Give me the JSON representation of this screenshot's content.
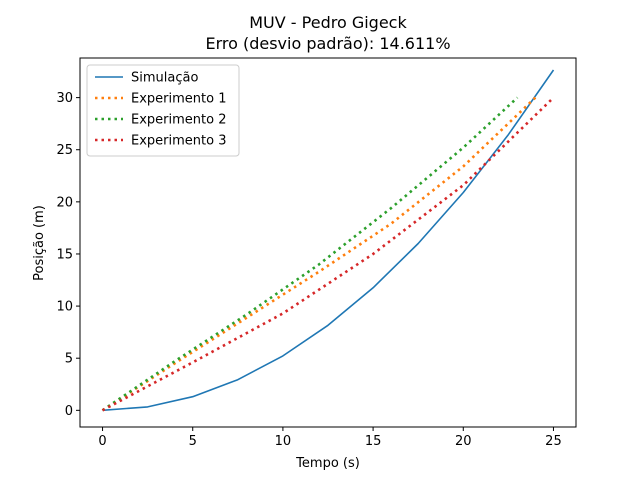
{
  "chart_data": {
    "type": "line",
    "title": "MUV - Pedro Gigeck",
    "subtitle": "Erro (desvio padrão): 14.611%",
    "xlabel": "Tempo (s)",
    "ylabel": "Posição (m)",
    "xlim": [
      -1.25,
      26.25
    ],
    "ylim": [
      -1.6,
      33.8
    ],
    "xticks": [
      0,
      5,
      10,
      15,
      20,
      25
    ],
    "yticks": [
      0,
      5,
      10,
      15,
      20,
      25,
      30
    ],
    "grid": false,
    "legend_position": "upper-left",
    "series": [
      {
        "name": "Simulação",
        "color": "#1f77b4",
        "style": "solid",
        "x": [
          0,
          2.5,
          5,
          7.5,
          10,
          12.5,
          15,
          17.5,
          20,
          22.5,
          25
        ],
        "y": [
          0,
          0.33,
          1.31,
          2.94,
          5.22,
          8.16,
          11.75,
          16.0,
          20.9,
          26.45,
          32.65
        ]
      },
      {
        "name": "Experimento 1",
        "color": "#ff7f0e",
        "style": "dotted",
        "x": [
          0,
          4,
          8,
          12,
          16,
          20,
          24
        ],
        "y": [
          0,
          4.5,
          8.9,
          13.3,
          17.9,
          23.4,
          30.0
        ]
      },
      {
        "name": "Experimento 2",
        "color": "#2ca02c",
        "style": "dotted",
        "x": [
          0,
          4,
          8,
          12,
          16,
          20,
          23
        ],
        "y": [
          0,
          4.7,
          9.2,
          14.0,
          19.4,
          25.2,
          30.0
        ]
      },
      {
        "name": "Experimento 3",
        "color": "#d62728",
        "style": "dotted",
        "x": [
          0,
          5,
          10,
          15,
          20,
          25
        ],
        "y": [
          0,
          4.6,
          9.3,
          15.0,
          21.6,
          30.0
        ]
      }
    ]
  }
}
